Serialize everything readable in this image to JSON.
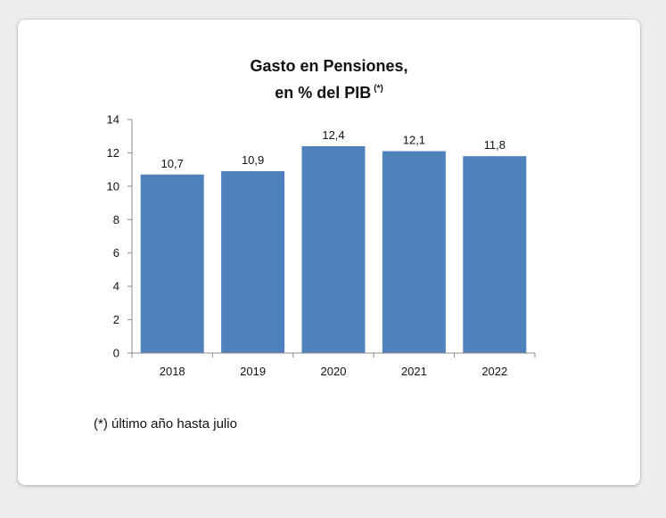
{
  "chart_data": {
    "type": "bar",
    "title_line1": "Gasto en Pensiones,",
    "title_line2": "en % del PIB",
    "title_mark": "(*)",
    "categories": [
      "2018",
      "2019",
      "2020",
      "2021",
      "2022"
    ],
    "values": [
      10.7,
      10.9,
      12.4,
      12.1,
      11.8
    ],
    "data_labels": [
      "10,7",
      "10,9",
      "12,4",
      "12,1",
      "11,8"
    ],
    "xlabel": "",
    "ylabel": "",
    "ylim": [
      0,
      14
    ],
    "yticks": [
      0,
      2,
      4,
      6,
      8,
      10,
      12,
      14
    ],
    "grid": false,
    "bar_color": "#4f81bd"
  },
  "footnote": "(*) último año hasta julio"
}
